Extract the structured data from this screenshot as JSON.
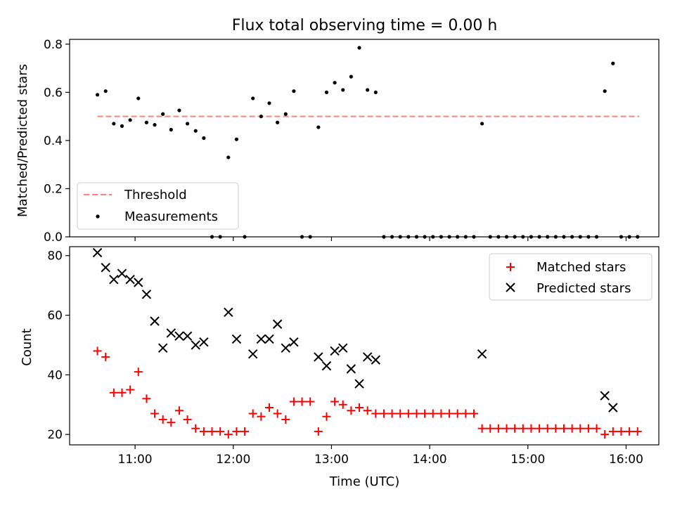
{
  "chart_data": [
    {
      "type": "scatter",
      "title": "Flux total observing time = 0.00 h",
      "xlabel": "",
      "ylabel": "Matched/Predicted stars",
      "ylim": [
        0,
        0.82
      ],
      "yticks": [
        0.0,
        0.2,
        0.4,
        0.6,
        0.8
      ],
      "ytick_labels": [
        "0.0",
        "0.2",
        "0.4",
        "0.6",
        "0.8"
      ],
      "legend_position": "lower-left",
      "threshold": {
        "name": "Threshold",
        "value": 0.5,
        "x_start": "10:37",
        "x_end": "16:08",
        "color": "#ff7f7f"
      },
      "series": [
        {
          "name": "Measurements",
          "color": "#000000",
          "points": [
            [
              "10:37",
              0.59
            ],
            [
              "10:42",
              0.605
            ],
            [
              "10:47",
              0.47
            ],
            [
              "10:52",
              0.46
            ],
            [
              "10:57",
              0.485
            ],
            [
              "11:02",
              0.575
            ],
            [
              "11:07",
              0.475
            ],
            [
              "11:12",
              0.465
            ],
            [
              "11:17",
              0.51
            ],
            [
              "11:22",
              0.445
            ],
            [
              "11:27",
              0.525
            ],
            [
              "11:32",
              0.47
            ],
            [
              "11:37",
              0.44
            ],
            [
              "11:42",
              0.41
            ],
            [
              "11:47",
              0.0
            ],
            [
              "11:52",
              0.0
            ],
            [
              "11:57",
              0.33
            ],
            [
              "12:02",
              0.405
            ],
            [
              "12:07",
              0.0
            ],
            [
              "12:12",
              0.575
            ],
            [
              "12:17",
              0.5
            ],
            [
              "12:22",
              0.555
            ],
            [
              "12:27",
              0.475
            ],
            [
              "12:32",
              0.51
            ],
            [
              "12:37",
              0.605
            ],
            [
              "12:42",
              0.0
            ],
            [
              "12:47",
              0.0
            ],
            [
              "12:52",
              0.455
            ],
            [
              "12:57",
              0.6
            ],
            [
              "13:02",
              0.64
            ],
            [
              "13:07",
              0.61
            ],
            [
              "13:12",
              0.665
            ],
            [
              "13:17",
              0.785
            ],
            [
              "13:22",
              0.61
            ],
            [
              "13:27",
              0.6
            ],
            [
              "13:32",
              0.0
            ],
            [
              "13:37",
              0.0
            ],
            [
              "13:42",
              0.0
            ],
            [
              "13:47",
              0.0
            ],
            [
              "13:52",
              0.0
            ],
            [
              "13:57",
              0.0
            ],
            [
              "14:02",
              0.0
            ],
            [
              "14:07",
              0.0
            ],
            [
              "14:12",
              0.0
            ],
            [
              "14:17",
              0.0
            ],
            [
              "14:22",
              0.0
            ],
            [
              "14:27",
              0.0
            ],
            [
              "14:32",
              0.47
            ],
            [
              "14:37",
              0.0
            ],
            [
              "14:42",
              0.0
            ],
            [
              "14:47",
              0.0
            ],
            [
              "14:52",
              0.0
            ],
            [
              "14:57",
              0.0
            ],
            [
              "15:02",
              0.0
            ],
            [
              "15:07",
              0.0
            ],
            [
              "15:12",
              0.0
            ],
            [
              "15:17",
              0.0
            ],
            [
              "15:22",
              0.0
            ],
            [
              "15:27",
              0.0
            ],
            [
              "15:32",
              0.0
            ],
            [
              "15:37",
              0.0
            ],
            [
              "15:42",
              0.0
            ],
            [
              "15:47",
              0.605
            ],
            [
              "15:52",
              0.72
            ],
            [
              "15:57",
              0.0
            ],
            [
              "16:02",
              0.0
            ],
            [
              "16:07",
              0.0
            ]
          ]
        }
      ]
    },
    {
      "type": "scatter",
      "title": "",
      "xlabel": "Time (UTC)",
      "ylabel": "Count",
      "xlim": [
        "10:20",
        "16:20"
      ],
      "ylim": [
        16.5,
        83
      ],
      "xticks": [
        "11:00",
        "12:00",
        "13:00",
        "14:00",
        "15:00",
        "16:00"
      ],
      "yticks": [
        20,
        40,
        60,
        80
      ],
      "ytick_labels": [
        "20",
        "40",
        "60",
        "80"
      ],
      "legend_position": "top-right",
      "series": [
        {
          "name": "Matched stars",
          "marker": "+",
          "color": "#ff0000",
          "points": [
            [
              "10:37",
              48
            ],
            [
              "10:42",
              46
            ],
            [
              "10:47",
              34
            ],
            [
              "10:52",
              34
            ],
            [
              "10:57",
              35
            ],
            [
              "11:02",
              41
            ],
            [
              "11:07",
              32
            ],
            [
              "11:12",
              27
            ],
            [
              "11:17",
              25
            ],
            [
              "11:22",
              24
            ],
            [
              "11:27",
              28
            ],
            [
              "11:32",
              25
            ],
            [
              "11:37",
              22
            ],
            [
              "11:42",
              21
            ],
            [
              "11:47",
              21
            ],
            [
              "11:52",
              21
            ],
            [
              "11:57",
              20
            ],
            [
              "12:02",
              21
            ],
            [
              "12:07",
              21
            ],
            [
              "12:12",
              27
            ],
            [
              "12:17",
              26
            ],
            [
              "12:22",
              29
            ],
            [
              "12:27",
              27
            ],
            [
              "12:32",
              25
            ],
            [
              "12:37",
              31
            ],
            [
              "12:42",
              31
            ],
            [
              "12:47",
              31
            ],
            [
              "12:52",
              21
            ],
            [
              "12:57",
              26
            ],
            [
              "13:02",
              31
            ],
            [
              "13:07",
              30
            ],
            [
              "13:12",
              28
            ],
            [
              "13:17",
              29
            ],
            [
              "13:22",
              28
            ],
            [
              "13:27",
              27
            ],
            [
              "13:32",
              27
            ],
            [
              "13:37",
              27
            ],
            [
              "13:42",
              27
            ],
            [
              "13:47",
              27
            ],
            [
              "13:52",
              27
            ],
            [
              "13:57",
              27
            ],
            [
              "14:02",
              27
            ],
            [
              "14:07",
              27
            ],
            [
              "14:12",
              27
            ],
            [
              "14:17",
              27
            ],
            [
              "14:22",
              27
            ],
            [
              "14:27",
              27
            ],
            [
              "14:32",
              22
            ],
            [
              "14:37",
              22
            ],
            [
              "14:42",
              22
            ],
            [
              "14:47",
              22
            ],
            [
              "14:52",
              22
            ],
            [
              "14:57",
              22
            ],
            [
              "15:02",
              22
            ],
            [
              "15:07",
              22
            ],
            [
              "15:12",
              22
            ],
            [
              "15:17",
              22
            ],
            [
              "15:22",
              22
            ],
            [
              "15:27",
              22
            ],
            [
              "15:32",
              22
            ],
            [
              "15:37",
              22
            ],
            [
              "15:42",
              22
            ],
            [
              "15:47",
              20
            ],
            [
              "15:52",
              21
            ],
            [
              "15:57",
              21
            ],
            [
              "16:02",
              21
            ],
            [
              "16:07",
              21
            ]
          ]
        },
        {
          "name": "Predicted stars",
          "marker": "x",
          "color": "#000000",
          "points": [
            [
              "10:37",
              81
            ],
            [
              "10:42",
              76
            ],
            [
              "10:47",
              72
            ],
            [
              "10:52",
              74
            ],
            [
              "10:57",
              72
            ],
            [
              "11:02",
              71
            ],
            [
              "11:07",
              67
            ],
            [
              "11:12",
              58
            ],
            [
              "11:17",
              49
            ],
            [
              "11:22",
              54
            ],
            [
              "11:27",
              53
            ],
            [
              "11:32",
              53
            ],
            [
              "11:37",
              50
            ],
            [
              "11:42",
              51
            ],
            [
              "11:57",
              61
            ],
            [
              "12:02",
              52
            ],
            [
              "12:12",
              47
            ],
            [
              "12:17",
              52
            ],
            [
              "12:22",
              52
            ],
            [
              "12:27",
              57
            ],
            [
              "12:32",
              49
            ],
            [
              "12:37",
              51
            ],
            [
              "12:52",
              46
            ],
            [
              "12:57",
              43
            ],
            [
              "13:02",
              48
            ],
            [
              "13:07",
              49
            ],
            [
              "13:12",
              42
            ],
            [
              "13:17",
              37
            ],
            [
              "13:22",
              46
            ],
            [
              "13:27",
              45
            ],
            [
              "14:32",
              47
            ],
            [
              "15:47",
              33
            ],
            [
              "15:52",
              29
            ]
          ]
        }
      ]
    }
  ]
}
